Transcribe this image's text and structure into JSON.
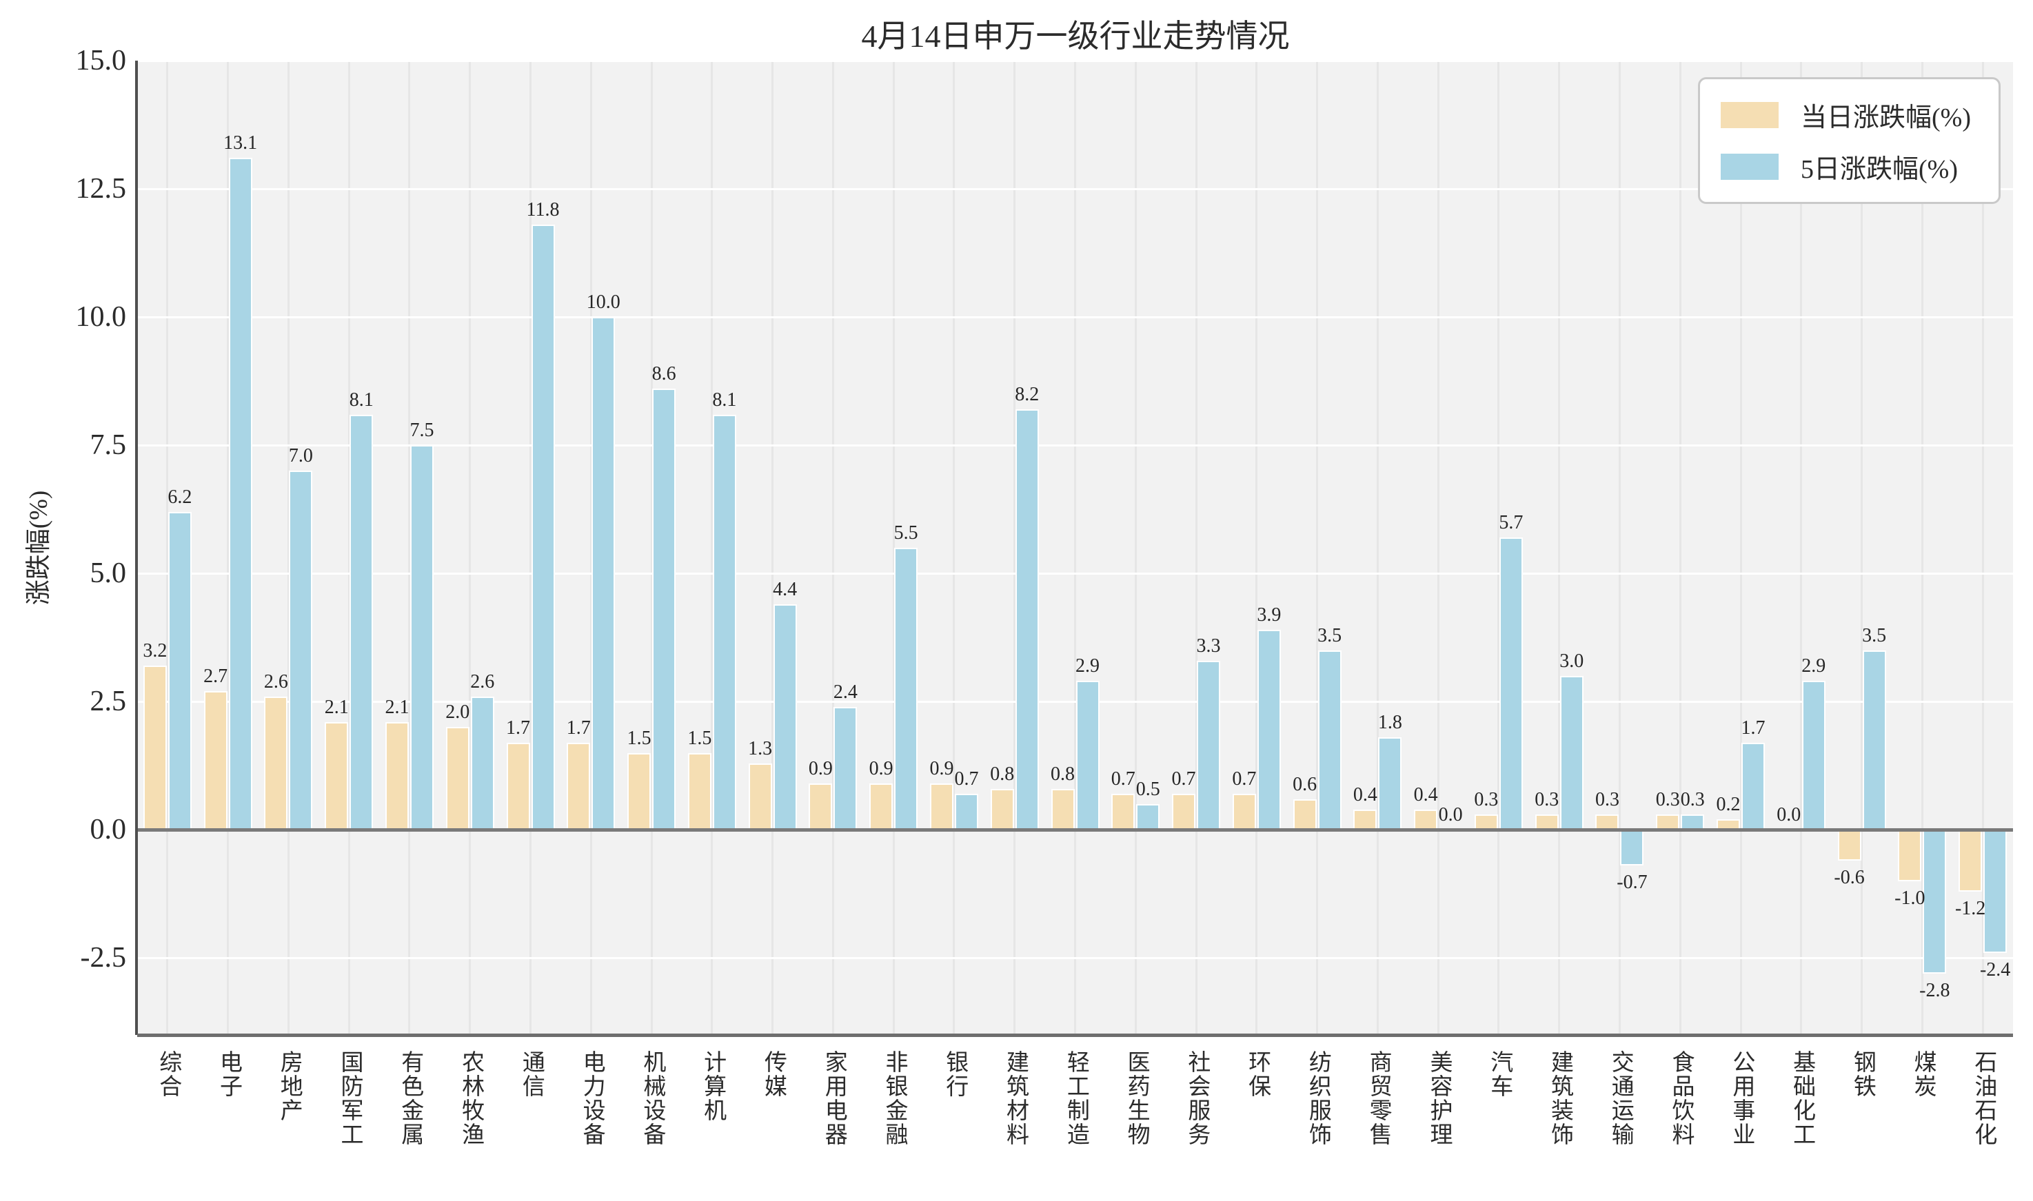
{
  "chart_data": {
    "type": "bar",
    "title": "4月14日申万一级行业走势情况",
    "xlabel": "",
    "ylabel": "涨跌幅(%)",
    "ylim": [
      -4.0,
      15.0
    ],
    "yticks": [
      15.0,
      12.5,
      10.0,
      7.5,
      5.0,
      2.5,
      0.0,
      -2.5
    ],
    "grid": {
      "panel_bg": "#f2f2f2",
      "horizontal_gridlines": "white at each y tick",
      "vertical_gridlines": "faint gray at each category center"
    },
    "legend_position": "upper-right",
    "bar_label_decimals": 1,
    "categories": [
      "综合",
      "电子",
      "房地产",
      "国防军工",
      "有色金属",
      "农林牧渔",
      "通信",
      "电力设备",
      "机械设备",
      "计算机",
      "传媒",
      "家用电器",
      "非银金融",
      "银行",
      "建筑材料",
      "轻工制造",
      "医药生物",
      "社会服务",
      "环保",
      "纺织服饰",
      "商贸零售",
      "美容护理",
      "汽车",
      "建筑装饰",
      "交通运输",
      "食品饮料",
      "公用事业",
      "基础化工",
      "钢铁",
      "煤炭",
      "石油石化"
    ],
    "series": [
      {
        "name": "当日涨跌幅(%)",
        "color": "#f5deb3",
        "values": [
          3.2,
          2.7,
          2.6,
          2.1,
          2.1,
          2.0,
          1.7,
          1.7,
          1.5,
          1.5,
          1.3,
          0.9,
          0.9,
          0.9,
          0.8,
          0.8,
          0.7,
          0.7,
          0.7,
          0.6,
          0.4,
          0.4,
          0.3,
          0.3,
          0.3,
          0.3,
          0.2,
          0.0,
          -0.6,
          -1.0,
          -1.2
        ]
      },
      {
        "name": "5日涨跌幅(%)",
        "color": "#a9d5e5",
        "values": [
          6.2,
          13.1,
          7.0,
          8.1,
          7.5,
          2.6,
          11.8,
          10.0,
          8.6,
          8.1,
          4.4,
          2.4,
          5.5,
          0.7,
          8.2,
          2.9,
          0.5,
          3.3,
          3.9,
          3.5,
          1.8,
          0.0,
          5.7,
          3.0,
          -0.7,
          0.3,
          1.7,
          2.9,
          3.5,
          -2.8,
          -2.4
        ]
      }
    ],
    "colors": {
      "panel_bg": "#f2f2f2",
      "grid_horizontal": "#ffffff",
      "grid_vertical": "#e6e6e6",
      "zero_line": "#7a7a7a",
      "left_spine": "#4f4f4f",
      "bottom_spine": "#6e6e6e",
      "text": "#2b2b2b",
      "legend_border": "#c9c9c9",
      "legend_bg": "#ffffff"
    }
  }
}
